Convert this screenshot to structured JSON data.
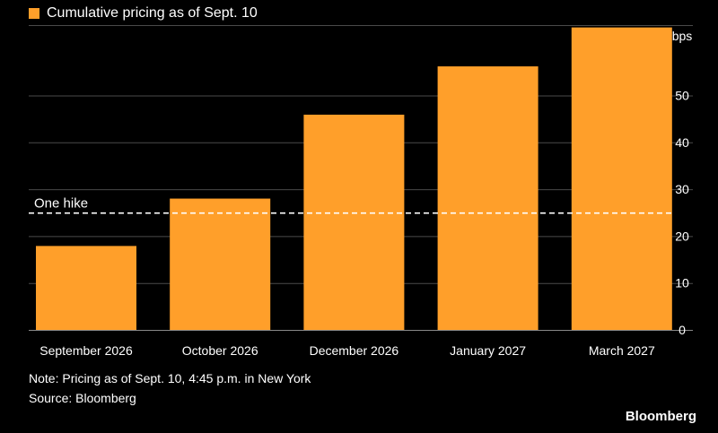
{
  "legend": {
    "label": "Cumulative pricing as of Sept. 10",
    "color": "#ff9f2a"
  },
  "note": "Note: Pricing as of Sept. 10, 4:45 p.m. in New York",
  "source": "Source: Bloomberg",
  "brand": "Bloomberg",
  "chart_data": {
    "type": "bar",
    "categories": [
      "September 2026",
      "October 2026",
      "December 2026",
      "January 2027",
      "March 2027"
    ],
    "series": [
      {
        "values": [
          17.9,
          28,
          45.9,
          56.2,
          64.5
        ]
      }
    ],
    "yunit": "bps",
    "ylim": [
      0,
      65
    ],
    "yticks": [
      0,
      10,
      20,
      30,
      40,
      50
    ],
    "reference_line": {
      "label": "One hike",
      "value": 25,
      "style": "dashed"
    },
    "bar_color": "#ff9f2a",
    "grid": true,
    "y_axis_position": "right"
  }
}
